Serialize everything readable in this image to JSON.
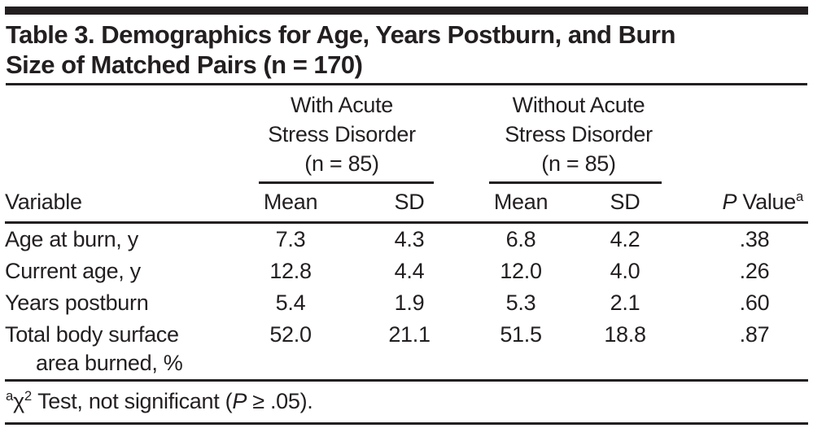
{
  "title_lines": [
    "Table 3. Demographics for Age, Years Postburn, and Burn",
    "Size of Matched Pairs (n = 170)"
  ],
  "table": {
    "groups": [
      {
        "line1": "With Acute",
        "line2": "Stress Disorder",
        "line3": "(n = 85)"
      },
      {
        "line1": "Without Acute",
        "line2": "Stress Disorder",
        "line3": "(n = 85)"
      }
    ],
    "columns": {
      "variable": "Variable",
      "mean": "Mean",
      "sd": "SD",
      "p_value_italic": "P",
      "p_value_rest": " Value",
      "p_value_sup": "a"
    },
    "rows": [
      {
        "variable": "Age at burn, y",
        "with_mean": "7.3",
        "with_sd": "4.3",
        "without_mean": "6.8",
        "without_sd": "4.2",
        "p_value": ".38"
      },
      {
        "variable": "Current age, y",
        "with_mean": "12.8",
        "with_sd": "4.4",
        "without_mean": "12.0",
        "without_sd": "4.0",
        "p_value": ".26"
      },
      {
        "variable": "Years postburn",
        "with_mean": "5.4",
        "with_sd": "1.9",
        "without_mean": "5.3",
        "without_sd": "2.1",
        "p_value": ".60"
      },
      {
        "variable": "Total body surface",
        "variable_line2": "area burned, %",
        "with_mean": "52.0",
        "with_sd": "21.1",
        "without_mean": "51.5",
        "without_sd": "18.8",
        "p_value": ".87"
      }
    ],
    "footnote": {
      "sup": "a",
      "chi": "χ",
      "chi_sup": "2",
      "text_before_p": " Test, not significant (",
      "p_italic": "P",
      "text_after_p": " ≥ .05)."
    }
  },
  "colors": {
    "text": "#231f20",
    "rule": "#231f20",
    "background": "#ffffff"
  }
}
